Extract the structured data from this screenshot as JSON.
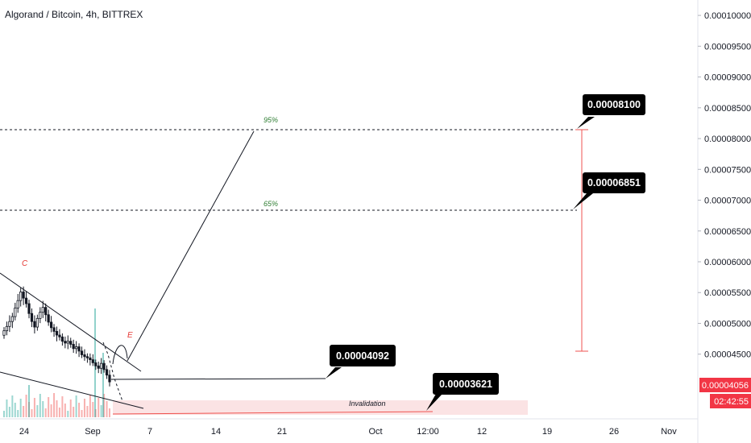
{
  "header": {
    "title": "Algorand / Bitcoin, 4h, BITTREX"
  },
  "price_axis": {
    "ticks": [
      "0.00010000",
      "0.00009500",
      "0.00009000",
      "0.00008500",
      "0.00008000",
      "0.00007500",
      "0.00007000",
      "0.00006500",
      "0.00006000",
      "0.00005500",
      "0.00005000",
      "0.00004500"
    ],
    "current_price": "0.00004056",
    "countdown": "02:42:55",
    "badge_color": "#f23645"
  },
  "time_axis": {
    "ticks": [
      "24",
      "Sep",
      "7",
      "14",
      "21",
      "Oct",
      "12:00",
      "12",
      "19",
      "26",
      "Nov"
    ]
  },
  "annotations": {
    "target_high": "0.00008100",
    "target_mid": "0.00006851",
    "entry": "0.00004092",
    "stop": "0.00003621",
    "fib_95": "95%",
    "fib_65": "65%",
    "wave_c": "C",
    "wave_e": "E",
    "invalidation": "Invalidation"
  },
  "chart_data": {
    "type": "candlestick",
    "title": "Algorand / Bitcoin, 4h, BITTREX",
    "symbol": "ALGO/BTC",
    "interval": "4h",
    "exchange": "BITTREX",
    "ylim": [
      3.45e-05,
      0.0001025
    ],
    "close_series": [
      4.88e-05,
      4.95e-05,
      5.03e-05,
      5.11e-05,
      5.25e-05,
      5.37e-05,
      5.51e-05,
      5.41e-05,
      5.32e-05,
      5.16e-05,
      5.03e-05,
      4.94e-05,
      5.08e-05,
      5.18e-05,
      5.26e-05,
      5.14e-05,
      5.02e-05,
      4.93e-05,
      4.87e-05,
      4.81e-05,
      4.78e-05,
      4.71e-05,
      4.68e-05,
      4.71e-05,
      4.66e-05,
      4.59e-05,
      4.62e-05,
      4.55e-05,
      4.49e-05,
      4.46e-05,
      4.44e-05,
      4.41e-05,
      4.36e-05,
      4.31e-05,
      4.27e-05,
      4.35e-05,
      4.25e-05,
      4.16e-05,
      4.05e-05
    ],
    "current_price": 4.056e-05,
    "levels": [
      {
        "label": "0.00008100",
        "value": 8.1e-05,
        "fib": "95%"
      },
      {
        "label": "0.00006851",
        "value": 6.851e-05,
        "fib": "65%"
      },
      {
        "label": "0.00004092",
        "value": 4.092e-05
      },
      {
        "label": "0.00003621",
        "value": 3.621e-05,
        "note": "Invalidation"
      }
    ],
    "colors": {
      "up": "#26a69a",
      "down": "#ef5350",
      "candle": "#131722",
      "range": "#f23645"
    }
  }
}
